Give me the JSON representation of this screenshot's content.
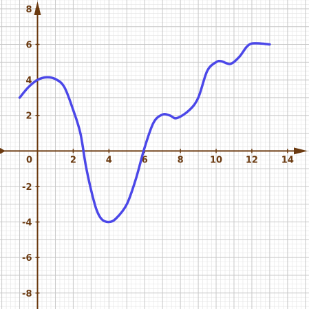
{
  "chart_data": {
    "type": "line",
    "title": "",
    "xlabel": "",
    "ylabel": "",
    "xlim": [
      -2.1,
      15.2
    ],
    "ylim": [
      -8.9,
      8.5
    ],
    "grid": true,
    "x_ticks": [
      0,
      2,
      4,
      6,
      8,
      10,
      12,
      14
    ],
    "y_ticks": [
      -8,
      -6,
      -4,
      -2,
      2,
      4,
      6,
      8
    ],
    "x_tick_labels": [
      "0",
      "2",
      "4",
      "6",
      "8",
      "10",
      "12",
      "14"
    ],
    "y_tick_labels": [
      "-8",
      "-6",
      "-4",
      "-2",
      "2",
      "4",
      "6",
      "8"
    ],
    "series": [
      {
        "color": "#4b47e8",
        "points": [
          [
            -1.0,
            3.0
          ],
          [
            -0.5,
            3.6
          ],
          [
            0.0,
            4.0
          ],
          [
            0.5,
            4.15
          ],
          [
            1.0,
            4.05
          ],
          [
            1.5,
            3.6
          ],
          [
            2.0,
            2.3
          ],
          [
            2.4,
            1.0
          ],
          [
            2.7,
            -0.8
          ],
          [
            3.0,
            -2.2
          ],
          [
            3.3,
            -3.3
          ],
          [
            3.6,
            -3.85
          ],
          [
            4.0,
            -4.0
          ],
          [
            4.4,
            -3.8
          ],
          [
            5.0,
            -3.0
          ],
          [
            5.5,
            -1.6
          ],
          [
            6.0,
            0.2
          ],
          [
            6.5,
            1.6
          ],
          [
            7.0,
            2.05
          ],
          [
            7.4,
            2.0
          ],
          [
            7.8,
            1.85
          ],
          [
            8.5,
            2.3
          ],
          [
            9.0,
            3.0
          ],
          [
            9.5,
            4.5
          ],
          [
            10.0,
            5.0
          ],
          [
            10.3,
            5.05
          ],
          [
            10.8,
            4.9
          ],
          [
            11.3,
            5.3
          ],
          [
            11.7,
            5.85
          ],
          [
            12.0,
            6.05
          ],
          [
            12.5,
            6.05
          ],
          [
            13.0,
            6.0
          ]
        ]
      }
    ],
    "colors": {
      "axis": "#6b3a10",
      "tick_label": "#6b3a10",
      "minor_grid": "#e4e4e4",
      "major_grid": "#c8c8c8"
    }
  }
}
